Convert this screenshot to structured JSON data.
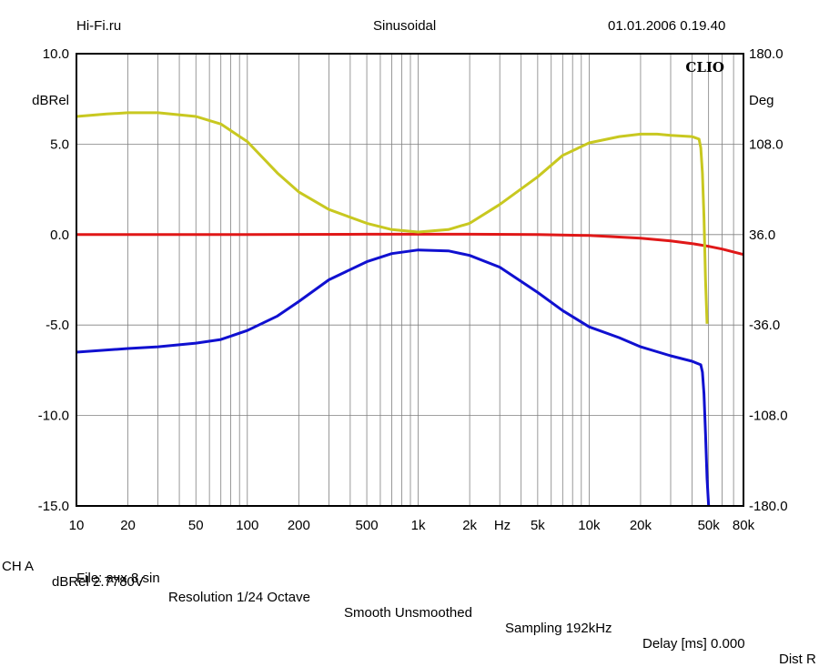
{
  "header": {
    "left": "Hi-Fi.ru",
    "center": "Sinusoidal",
    "right": "01.01.2006 0.19.40"
  },
  "footer": {
    "channel": "CH A",
    "unit": "dBRel 2.7780V",
    "resolution": "Resolution 1/24 Octave",
    "smooth": "Smooth Unsmoothed",
    "sampling": "Sampling 192kHz",
    "delay": "Delay [ms] 0.000",
    "dist": "Dist R",
    "file": "File: ачх 8.sin"
  },
  "chart_data": {
    "type": "line",
    "logo": "CLIO",
    "xlabel": "Hz",
    "ylabel_left": "dBRel",
    "ylabel_right": "Deg",
    "x_scale": "log",
    "xlim": [
      10,
      80000
    ],
    "ylim": [
      -15,
      10
    ],
    "y2lim": [
      -180,
      180
    ],
    "grid": true,
    "x_ticks": [
      {
        "v": 10,
        "label": "10"
      },
      {
        "v": 20,
        "label": "20"
      },
      {
        "v": 50,
        "label": "50"
      },
      {
        "v": 100,
        "label": "100"
      },
      {
        "v": 200,
        "label": "200"
      },
      {
        "v": 500,
        "label": "500"
      },
      {
        "v": 1000,
        "label": "1k"
      },
      {
        "v": 2000,
        "label": "2k"
      },
      {
        "v": 5000,
        "label": "5k"
      },
      {
        "v": 10000,
        "label": "10k"
      },
      {
        "v": 20000,
        "label": "20k"
      },
      {
        "v": 50000,
        "label": "50k"
      },
      {
        "v": 80000,
        "label": "80k"
      }
    ],
    "y_ticks_left": [
      {
        "v": 10,
        "label": "10.0"
      },
      {
        "v": 5,
        "label": "5.0"
      },
      {
        "v": 0,
        "label": "0.0"
      },
      {
        "v": -5,
        "label": "-5.0"
      },
      {
        "v": -10,
        "label": "-10.0"
      },
      {
        "v": -15,
        "label": "-15.0"
      }
    ],
    "y_ticks_right": [
      {
        "v": 180,
        "label": "180.0"
      },
      {
        "v": 108,
        "label": "108.0"
      },
      {
        "v": 36,
        "label": "36.0"
      },
      {
        "v": -36,
        "label": "-36.0"
      },
      {
        "v": -108,
        "label": "-108.0"
      },
      {
        "v": -180,
        "label": "-180.0"
      }
    ],
    "series": [
      {
        "color": "#e01818",
        "axis": "left",
        "points": [
          [
            10,
            0
          ],
          [
            100,
            0
          ],
          [
            500,
            0.02
          ],
          [
            1000,
            0.02
          ],
          [
            2000,
            0.02
          ],
          [
            5000,
            0
          ],
          [
            10000,
            -0.05
          ],
          [
            20000,
            -0.2
          ],
          [
            30000,
            -0.35
          ],
          [
            40000,
            -0.5
          ],
          [
            50000,
            -0.65
          ],
          [
            60000,
            -0.8
          ],
          [
            80000,
            -1.1
          ]
        ]
      },
      {
        "color": "#1010d0",
        "axis": "left",
        "points": [
          [
            10,
            -6.5
          ],
          [
            20,
            -6.3
          ],
          [
            30,
            -6.2
          ],
          [
            50,
            -6.0
          ],
          [
            70,
            -5.8
          ],
          [
            100,
            -5.3
          ],
          [
            150,
            -4.5
          ],
          [
            200,
            -3.7
          ],
          [
            300,
            -2.5
          ],
          [
            500,
            -1.5
          ],
          [
            700,
            -1.05
          ],
          [
            1000,
            -0.85
          ],
          [
            1500,
            -0.9
          ],
          [
            2000,
            -1.15
          ],
          [
            3000,
            -1.8
          ],
          [
            5000,
            -3.2
          ],
          [
            7000,
            -4.2
          ],
          [
            10000,
            -5.1
          ],
          [
            15000,
            -5.7
          ],
          [
            20000,
            -6.2
          ],
          [
            30000,
            -6.7
          ],
          [
            40000,
            -7.0
          ],
          [
            45000,
            -7.2
          ],
          [
            46000,
            -7.6
          ],
          [
            47000,
            -8.8
          ],
          [
            48000,
            -11
          ],
          [
            49000,
            -13.5
          ],
          [
            50000,
            -15
          ]
        ]
      },
      {
        "color": "#c8c820",
        "axis": "right",
        "points": [
          [
            10,
            130
          ],
          [
            15,
            132
          ],
          [
            20,
            133
          ],
          [
            30,
            133
          ],
          [
            50,
            130
          ],
          [
            70,
            124
          ],
          [
            100,
            110
          ],
          [
            150,
            85
          ],
          [
            200,
            70
          ],
          [
            300,
            56
          ],
          [
            500,
            45
          ],
          [
            700,
            40
          ],
          [
            1000,
            38
          ],
          [
            1500,
            40
          ],
          [
            2000,
            45
          ],
          [
            3000,
            60
          ],
          [
            5000,
            82
          ],
          [
            7000,
            99
          ],
          [
            10000,
            109
          ],
          [
            15000,
            114
          ],
          [
            20000,
            116
          ],
          [
            25000,
            116
          ],
          [
            30000,
            115
          ],
          [
            40000,
            114
          ],
          [
            44000,
            112
          ],
          [
            45000,
            105
          ],
          [
            46000,
            85
          ],
          [
            47000,
            50
          ],
          [
            48000,
            0
          ],
          [
            49000,
            -35
          ]
        ]
      }
    ]
  }
}
